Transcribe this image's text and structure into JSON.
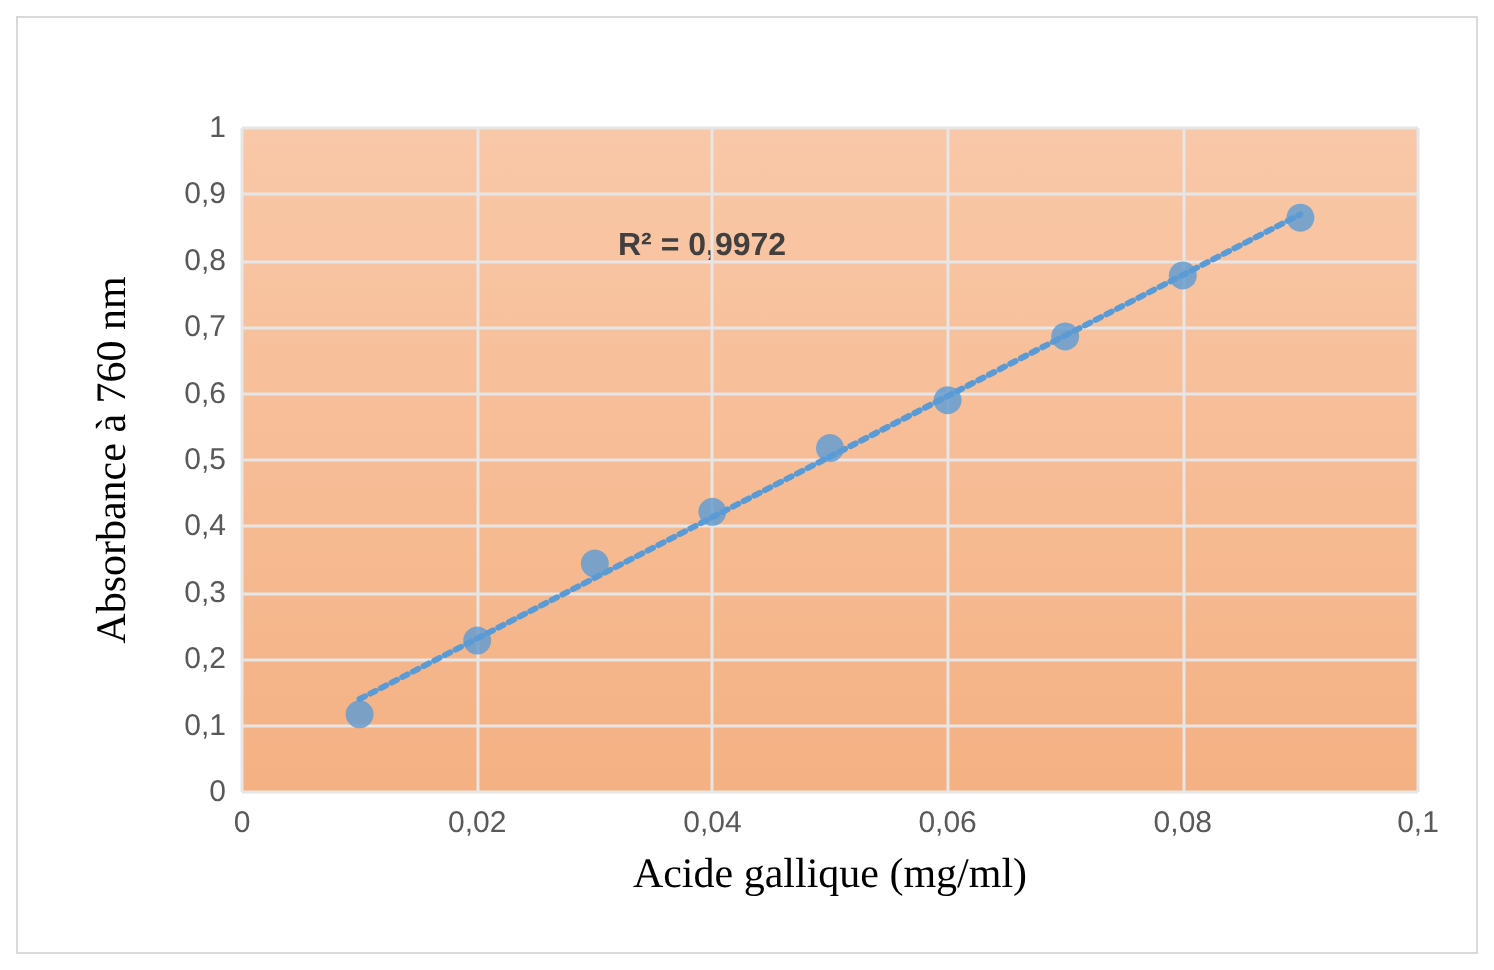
{
  "chart_data": {
    "type": "scatter",
    "xlabel": "Acide gallique (mg/ml)",
    "ylabel": "Absorbance à 760 nm",
    "annotations": [
      "R² = 0,9972"
    ],
    "series": [
      {
        "color": "#5b9bd5",
        "marker": "circle",
        "x": [
          0.01,
          0.02,
          0.03,
          0.04,
          0.05,
          0.06,
          0.07,
          0.08,
          0.09
        ],
        "values": [
          0.117,
          0.228,
          0.344,
          0.422,
          0.518,
          0.59,
          0.686,
          0.778,
          0.865
        ]
      },
      {
        "type": "line",
        "color": "#5b9bd5",
        "marker": "none",
        "line_style": "dotted",
        "x": [
          0.01,
          0.09
        ],
        "values": [
          0.14,
          0.87
        ]
      }
    ],
    "xlim": [
      0,
      0.1
    ],
    "xticks": [
      0,
      {
        "value": 0.02,
        "label": "0,02"
      },
      {
        "value": 0.04,
        "label": "0,04"
      },
      {
        "value": 0.06,
        "label": "0,06"
      },
      {
        "value": 0.08,
        "label": "0,08"
      },
      {
        "value": 0.1,
        "label": "0,1"
      }
    ],
    "ylim": [
      0,
      1
    ],
    "yticks": [
      0,
      {
        "value": 0.1,
        "label": "0,1"
      },
      {
        "value": 0.2,
        "label": "0,2"
      },
      {
        "value": 0.3,
        "label": "0,3"
      },
      {
        "value": 0.4,
        "label": "0,4"
      },
      {
        "value": 0.5,
        "label": "0,5"
      },
      {
        "value": 0.6,
        "label": "0,6"
      },
      {
        "value": 0.7,
        "label": "0,7"
      },
      {
        "value": 0.8,
        "label": "0,8"
      },
      {
        "value": 0.9,
        "label": "0,9"
      },
      1
    ],
    "grid": true
  }
}
